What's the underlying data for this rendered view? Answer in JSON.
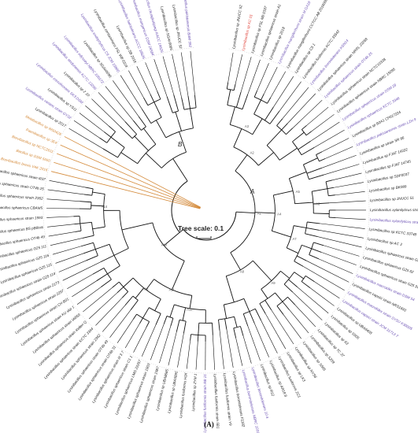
{
  "figure": {
    "panel_label": "(A)",
    "scale_label": "Tree scale: 0.1",
    "clade_a_label": "A",
    "clade_b_label": "B"
  },
  "colors": {
    "default": "#222222",
    "type_strain": "#6a4fb3",
    "outgroup": "#d48a3a",
    "target": "#e0433a",
    "branch": "#111111",
    "outgroup_branch": "#d48a3a"
  },
  "leaves": [
    {
      "text": "Lysinibacillus sp JNUCC 52",
      "group": "default"
    },
    {
      "text": "Lysinibacillus sp KC 01",
      "group": "target"
    },
    {
      "text": "Lysinibacillus sp FSL M8 0337",
      "group": "default"
    },
    {
      "text": "Lysinibacillus sphaericus strain A1",
      "group": "default"
    },
    {
      "text": "Lysinibacillus sp 2018",
      "group": "default"
    },
    {
      "text": "Lysinibacillus mangiferihumi strain M GX18",
      "group": "type_strain"
    },
    {
      "text": "Lysinibacillus mangiferihumi CCTCC AB 2016089",
      "group": "default"
    },
    {
      "text": "Lysinibacillus sp C5 1",
      "group": "default"
    },
    {
      "text": "Lysinibacillus fusiformis KCTC 33542",
      "group": "default"
    },
    {
      "text": "Lysinibacillus boronitolerans KSN14",
      "group": "type_strain"
    },
    {
      "text": "Lysinibacillus sphaericus strain NRRL 23268",
      "group": "default"
    },
    {
      "text": "Lysinibacillus sphaericus strain OT4b 25",
      "group": "type_strain"
    },
    {
      "text": "Lysinibacillus sphaericus strain NCTC10338",
      "group": "default"
    },
    {
      "text": "Lysinibacillus sphaericus strain NBRC 15095",
      "group": "default"
    },
    {
      "text": "Lysinibacillus sphaericus strain DSM 28",
      "group": "type_strain"
    },
    {
      "text": "Lysinibacillus sphaericus KCTC 3346",
      "group": "type_strain"
    },
    {
      "text": "Lysinibacillus sp B2A1 CP017224",
      "group": "default"
    },
    {
      "text": "Lysinibacillus pakistanensis strain LZH 9",
      "group": "type_strain"
    },
    {
      "text": "Lysinibacillus sp strain SR 86",
      "group": "default"
    },
    {
      "text": "Lysinibacillus sp FJAT 14222",
      "group": "default"
    },
    {
      "text": "Lysinibacillus sp FJAT 14745",
      "group": "default"
    },
    {
      "text": "Lysinibacillus sp SDF0037",
      "group": "default"
    },
    {
      "text": "Lysinibacillus sp BK089",
      "group": "default"
    },
    {
      "text": "Lysinibacillus sp JNUCC 51",
      "group": "default"
    },
    {
      "text": "Lysinibacillus xylanilyticus strain KCTC 13423",
      "group": "default"
    },
    {
      "text": "Lysinibacillus xylanilyticus strain DSM 23493",
      "group": "type_strain"
    },
    {
      "text": "Lysinibacillus sp KCTC 33748",
      "group": "default"
    },
    {
      "text": "Lysinibacillus sp AC 3",
      "group": "default"
    },
    {
      "text": "Lysinibacillus sphaericus strain G25 33",
      "group": "default"
    },
    {
      "text": "Lysinibacillus sphaericus G25 62",
      "group": "default"
    },
    {
      "text": "Lysinibacillus sphaericus strain G25 34",
      "group": "default"
    },
    {
      "text": "Lysinibacillus macroides strain DSM 54",
      "group": "type_strain"
    },
    {
      "text": "Lysinibacillus capsici strain NRS1693",
      "group": "default"
    },
    {
      "text": "Lysinibacillus macrolides strain SYSU K30005",
      "group": "type_strain"
    },
    {
      "text": "Lysinibacillus capsici strain JCM 31713 T",
      "group": "type_strain"
    },
    {
      "text": "Lysinibacillus sp UBA9408",
      "group": "default"
    },
    {
      "text": "Lysinibacillus sp S505",
      "group": "default"
    },
    {
      "text": "Lysinibacillus sp 63",
      "group": "default"
    },
    {
      "text": "Lysinibacillus sp TC 37",
      "group": "default"
    },
    {
      "text": "Lysinibacillus sp S259",
      "group": "default"
    },
    {
      "text": "Lysinibacillus sp S505",
      "group": "default"
    },
    {
      "text": "Lysinibacillus sp NYS6",
      "group": "default"
    },
    {
      "text": "Lysinibacillus sp LK3",
      "group": "default"
    },
    {
      "text": "Lysinibacillus fusiformis ZC1",
      "group": "default"
    },
    {
      "text": "Lysinibacillus sp AR18 8",
      "group": "default"
    },
    {
      "text": "Lysinibacillus sp R12",
      "group": "default"
    },
    {
      "text": "Lysinibacillus boronitolerans 10 a",
      "group": "type_strain"
    },
    {
      "text": "Lysinibacillus boronitolerans NBRC 103108",
      "group": "type_strain"
    },
    {
      "text": "Lysinibacillus boronitolerans F1182",
      "group": "default"
    },
    {
      "text": "Lysinibacillus fusiformis strain Y9",
      "group": "default"
    },
    {
      "text": "Lysinibacillus fusiformis strain 5B1",
      "group": "default"
    },
    {
      "text": "Lysinibacillus fusiformis strain RB 21",
      "group": "type_strain"
    },
    {
      "text": "Lysinibacillus sp ZYM 1",
      "group": "default"
    },
    {
      "text": "Lysinibacillus fusiformis H1K",
      "group": "default"
    },
    {
      "text": "Lysinibacillus sp UBA5895",
      "group": "default"
    },
    {
      "text": "Lysinibacillus sp UBA8685",
      "group": "default"
    },
    {
      "text": "Lysinibacillus sphaericus strain 1987",
      "group": "default"
    },
    {
      "text": "Lysinibacillus sphaericus strain 1903",
      "group": "default"
    },
    {
      "text": "Lysinibacillus sphaericus LMG 22257",
      "group": "default"
    },
    {
      "text": "Lysinibacillus sphaericus strain C1 1",
      "group": "default"
    },
    {
      "text": "Lysinibacillus sphaericus strain III 3 7",
      "group": "default"
    },
    {
      "text": "Lysinibacillus sphaericus strain OT4b 31",
      "group": "default"
    },
    {
      "text": "Lysinibacillus sphaericus strain OT4b 49",
      "group": "default"
    },
    {
      "text": "Lysinibacillus sphaericus strain 2362",
      "group": "default"
    },
    {
      "text": "Lysinibacillus sphaericus strain KCTC 3344",
      "group": "default"
    },
    {
      "text": "Lysinibacillus sphaericus strain Kellen Q",
      "group": "default"
    },
    {
      "text": "Lysinibacillus sphaericus strain IAB59",
      "group": "default"
    },
    {
      "text": "Lysinibacillus sphaericus strain KU skp 1",
      "group": "default"
    },
    {
      "text": "Lysinibacillus sphaericus strain CH B01",
      "group": "default"
    },
    {
      "text": "Lysinibacillus sphaericus strain 2297",
      "group": "default"
    },
    {
      "text": "Lysinibacillus sphaericus strain 2173",
      "group": "default"
    },
    {
      "text": "Lysinibacillus sphaericus strain G25 114",
      "group": "default"
    },
    {
      "text": "Lysinibacillus sphaericus G25 115",
      "group": "default"
    },
    {
      "text": "Lysinibacillus sphaericus G25 116",
      "group": "default"
    },
    {
      "text": "Lysinibacillus sphaericus G25 111",
      "group": "default"
    },
    {
      "text": "Lysinibacillus sphaericus OT4b 49",
      "group": "default"
    },
    {
      "text": "Lysinibacillus sphaericus BS pB0txis",
      "group": "default"
    },
    {
      "text": "Lysinibacillus sphaericus strain 1593",
      "group": "default"
    },
    {
      "text": "Lysinibacillus sphaericus CBAM5",
      "group": "default"
    },
    {
      "text": "Lysinibacillus sphaericus strain 2362",
      "group": "default"
    },
    {
      "text": "Lysinibacillus sphaericus strain OT4b 25",
      "group": "default"
    },
    {
      "text": "Lysinibacillus sphaericus strain III37",
      "group": "default"
    },
    {
      "text": "Brevibacillus brevis VAK 2016",
      "group": "outgroup"
    },
    {
      "text": "Bacillus sp DSM 5660",
      "group": "outgroup"
    },
    {
      "text": "Brevibacillus sp NCTC2611",
      "group": "outgroup"
    },
    {
      "text": "Paenibacillus sp 3E4",
      "group": "outgroup"
    },
    {
      "text": "Metabacillus sp WS0428",
      "group": "outgroup"
    },
    {
      "text": "Lysinibacillus sp 2017",
      "group": "default"
    },
    {
      "text": "Lysinibacillus varians strain GY32",
      "group": "type_strain"
    },
    {
      "text": "Lysinibacillus sp YS11",
      "group": "default"
    },
    {
      "text": "Lysinibacillus cresolivorans SK3 DSM",
      "group": "type_strain"
    },
    {
      "text": "Lysinibacillus sp 2 10",
      "group": "default"
    },
    {
      "text": "Lysinibacillus sinduriensis KCTC 13296",
      "group": "type_strain"
    },
    {
      "text": "Lysinibacillus odysseyi NBRC 100172",
      "group": "type_strain"
    },
    {
      "text": "Lysinibacillus sp SGAir0095",
      "group": "default"
    },
    {
      "text": "Lysinibacillus endophyticus C9 JCM 15800",
      "group": "type_strain"
    },
    {
      "text": "Lysinibacillus contaminans FSL W8 0318",
      "group": "default"
    },
    {
      "text": "Lysinibacillus sp SB 2018",
      "group": "default"
    },
    {
      "text": "Lysinibacillus halotolerans ACCC 18626",
      "group": "type_strain"
    },
    {
      "text": "Lysinibacillus manganicus DSM 26584",
      "group": "type_strain"
    },
    {
      "text": "Lysinibacillus chungkukjangi KACC 19626",
      "group": "type_strain"
    },
    {
      "text": "Lysinibacillus sp SGAir0095",
      "group": "default"
    },
    {
      "text": "Lysinibacillus sp JNUCC 52",
      "group": "default"
    },
    {
      "text": "Lysinibacillus pakistanensis BAM 592",
      "group": "type_strain"
    }
  ],
  "node_labels": [
    "A1",
    "A2",
    "A3",
    "A4",
    "A5",
    "A6",
    "A7",
    "A8",
    "A9",
    "A10",
    "A11",
    "A12",
    "A13",
    "A14",
    "A15",
    "A16",
    "A17",
    "A18",
    "A19",
    "A20",
    "A21",
    "A22",
    "A23",
    "A24"
  ]
}
